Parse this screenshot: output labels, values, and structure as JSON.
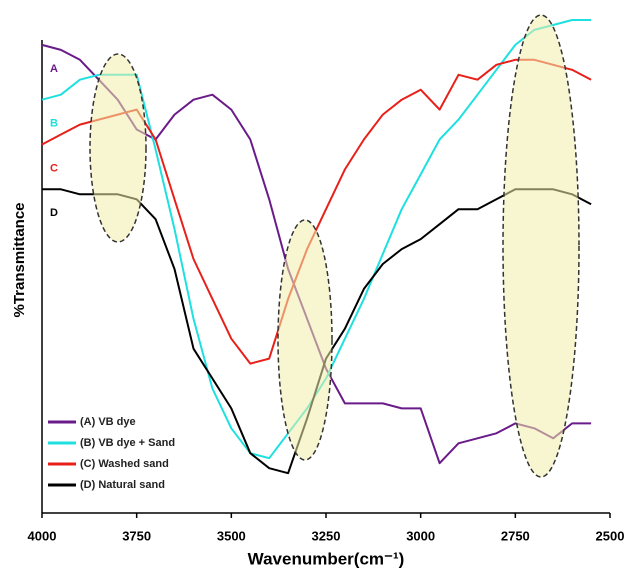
{
  "chart_data": {
    "type": "line",
    "x_label": "Wavenumber(cm⁻¹)",
    "y_label": "%Transmittance",
    "x": [
      4000,
      3950,
      3900,
      3850,
      3800,
      3750,
      3700,
      3650,
      3600,
      3550,
      3500,
      3450,
      3400,
      3350,
      3300,
      3250,
      3200,
      3150,
      3100,
      3050,
      3000,
      2950,
      2900,
      2850,
      2800,
      2750,
      2700,
      2650,
      2600,
      2550
    ],
    "xlim": [
      4000,
      2500
    ],
    "xticks": [
      4000,
      3750,
      3500,
      3250,
      3000,
      2750,
      2500
    ],
    "ylim": [
      0,
      100
    ],
    "legend": "lower left",
    "series": [
      {
        "name": "(A) VB dye",
        "label": "A",
        "color": "#6a1b8a",
        "values": [
          94,
          93,
          91,
          87,
          83,
          77,
          75,
          80,
          83,
          84,
          81,
          75,
          63,
          49,
          39,
          29,
          22,
          22,
          22,
          21,
          21,
          10,
          14,
          15,
          16,
          18,
          17,
          15,
          18,
          18
        ]
      },
      {
        "name": "(B) VB dye + Sand",
        "label": "B",
        "color": "#1ee0e0",
        "values": [
          83,
          84,
          87,
          88,
          88,
          88,
          73,
          57,
          39,
          25,
          17,
          12,
          11,
          16,
          21,
          27,
          35,
          43,
          52,
          61,
          68,
          75,
          79,
          84,
          89,
          94,
          97,
          98,
          99,
          99
        ]
      },
      {
        "name": "(C) Washed sand",
        "label": "C",
        "color": "#e8201a",
        "values": [
          74,
          76,
          78,
          79,
          80,
          81,
          75,
          63,
          51,
          43,
          35,
          30,
          31,
          43,
          53,
          61,
          69,
          75,
          80,
          83,
          85,
          81,
          88,
          87,
          90,
          91,
          91,
          90,
          89,
          87
        ]
      },
      {
        "name": "(D) Natural sand",
        "label": "D",
        "color": "#000000",
        "values": [
          65,
          65,
          64,
          64,
          64,
          63,
          59,
          49,
          33,
          27,
          21,
          12,
          9,
          8,
          19,
          31,
          37,
          45,
          50,
          53,
          55,
          58,
          61,
          61,
          63,
          65,
          65,
          65,
          64,
          62
        ]
      }
    ]
  }
}
